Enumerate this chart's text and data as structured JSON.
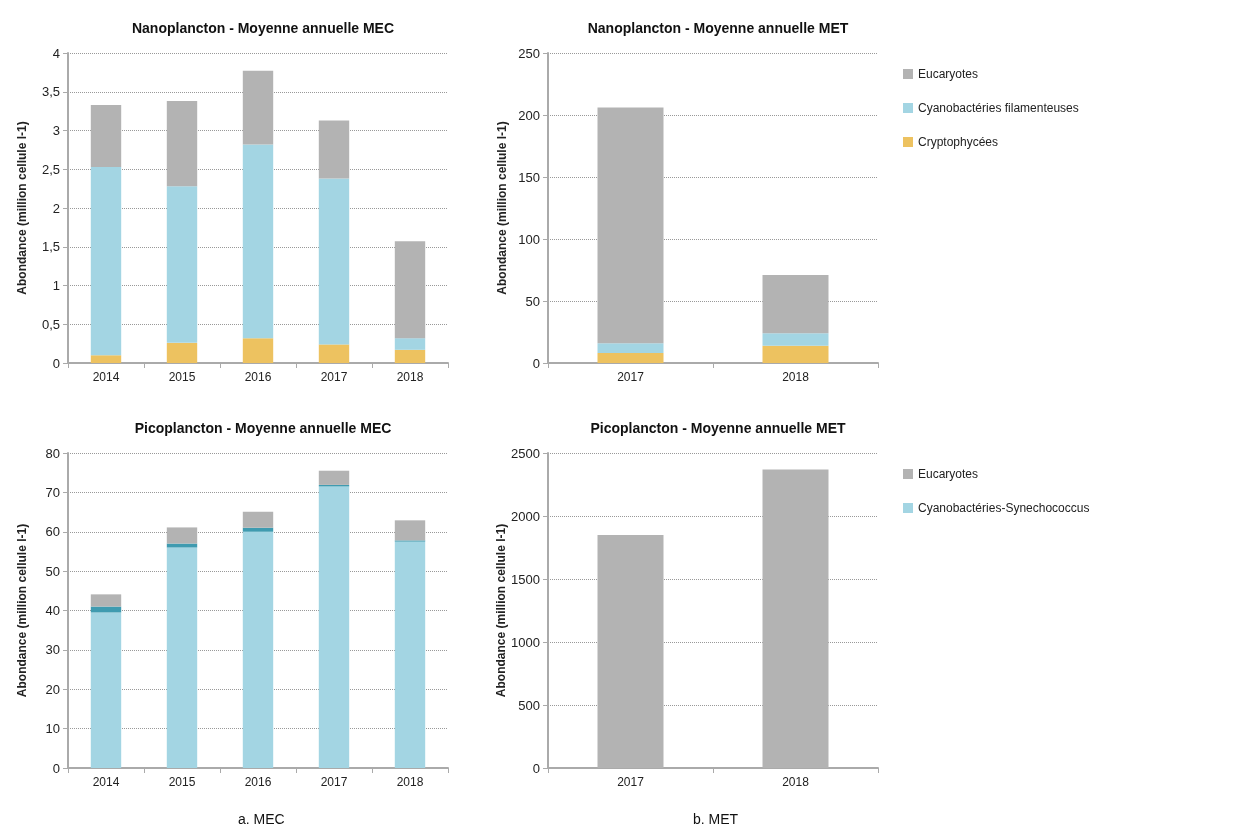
{
  "chart_data": [
    {
      "type": "bar",
      "title": "Nanoplancton - Moyenne annuelle MEC",
      "ylabel": "Abondance (million cellule l-1)",
      "categories": [
        "2014",
        "2015",
        "2016",
        "2017",
        "2018"
      ],
      "stacked": true,
      "ylim": [
        0,
        4
      ],
      "yticks": [
        0,
        {
          "value": 0.5,
          "label": "0,5"
        },
        1,
        {
          "value": 1.5,
          "label": "1,5"
        },
        2,
        {
          "value": 2.5,
          "label": "2,5"
        },
        3,
        {
          "value": 3.5,
          "label": "3,5"
        },
        4
      ],
      "grid": "y",
      "legend": false,
      "series": [
        {
          "color": "#edc260",
          "values": [
            0.1,
            0.26,
            0.32,
            0.24,
            0.17
          ]
        },
        {
          "color": "#a3d5e3",
          "values": [
            2.43,
            2.02,
            2.5,
            2.14,
            0.15
          ]
        },
        {
          "color": "#b3b3b3",
          "values": [
            0.8,
            1.1,
            0.95,
            0.75,
            1.25
          ]
        }
      ]
    },
    {
      "type": "bar",
      "title": "Nanoplancton - Moyenne annuelle MET",
      "ylabel": "Abondance (million cellule l-1)",
      "categories": [
        "2017",
        "2018"
      ],
      "stacked": true,
      "ylim": [
        0,
        250
      ],
      "yticks": [
        0,
        50,
        100,
        150,
        200,
        250
      ],
      "grid": "y",
      "legend": "right",
      "series": [
        {
          "name": "Cryptophycées",
          "color": "#edc260",
          "values": [
            8,
            14
          ]
        },
        {
          "name": "Cyanobactéries filamenteuses",
          "color": "#a3d5e3",
          "values": [
            8,
            10
          ]
        },
        {
          "name": "Eucaryotes",
          "color": "#b3b3b3",
          "values": [
            190,
            47
          ]
        }
      ]
    },
    {
      "type": "bar",
      "title": "Picoplancton - Moyenne annuelle MEC",
      "ylabel": "Abondance (million cellule l-1)",
      "categories": [
        "2014",
        "2015",
        "2016",
        "2017",
        "2018"
      ],
      "stacked": true,
      "ylim": [
        0,
        80
      ],
      "yticks": [
        0,
        10,
        20,
        30,
        40,
        50,
        60,
        70,
        80
      ],
      "grid": "y",
      "legend": false,
      "annotations": [
        "a. MEC"
      ],
      "series": [
        {
          "color": "#a3d5e3",
          "values": [
            39.5,
            56,
            60,
            71.5,
            57.5
          ]
        },
        {
          "color": "#3f9bb0",
          "values": [
            1.5,
            1,
            1,
            0.4,
            0.3
          ]
        },
        {
          "color": "#b3b3b3",
          "values": [
            3.1,
            4.1,
            4.1,
            3.6,
            5.1
          ]
        }
      ]
    },
    {
      "type": "bar",
      "title": "Picoplancton - Moyenne annuelle MET",
      "ylabel": "Abondance (million cellule l-1)",
      "categories": [
        "2017",
        "2018"
      ],
      "stacked": true,
      "ylim": [
        0,
        2500
      ],
      "yticks": [
        0,
        500,
        1000,
        1500,
        2000,
        2500
      ],
      "grid": "y",
      "legend": "right",
      "annotations": [
        "b. MET"
      ],
      "series": [
        {
          "name": "Cyanobactéries-Synechococcus",
          "color": "#a3d5e3",
          "values": [
            0,
            0
          ]
        },
        {
          "name": "Eucaryotes",
          "color": "#b3b3b3",
          "values": [
            1850,
            2370
          ]
        }
      ]
    }
  ]
}
